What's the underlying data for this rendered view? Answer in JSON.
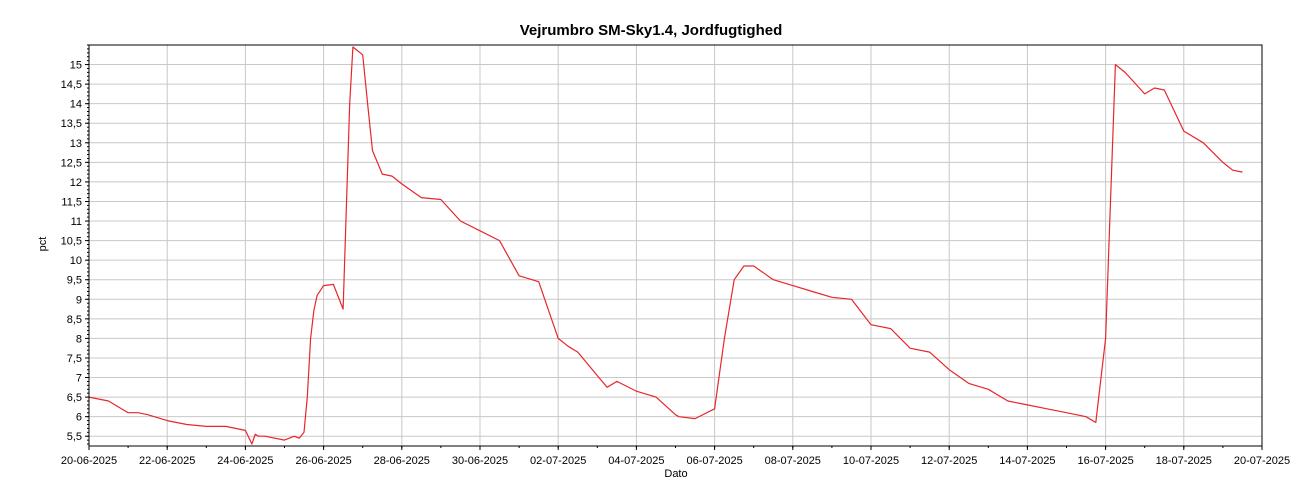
{
  "chart_data": {
    "type": "line",
    "title": "Vejrumbro SM-Sky1.4, Jordfugtighed",
    "xlabel": "Dato",
    "ylabel": "pct",
    "x_axis_type": "date",
    "x_tick_labels": [
      "20-06-2025",
      "22-06-2025",
      "24-06-2025",
      "26-06-2025",
      "28-06-2025",
      "30-06-2025",
      "02-07-2025",
      "04-07-2025",
      "06-07-2025",
      "08-07-2025",
      "10-07-2025",
      "12-07-2025",
      "14-07-2025",
      "16-07-2025",
      "18-07-2025",
      "20-07-2025"
    ],
    "x_range": [
      "2025-06-20",
      "2025-07-20"
    ],
    "y_tick_labels": [
      "5,5",
      "6",
      "6,5",
      "7",
      "7,5",
      "8",
      "8,5",
      "9",
      "9,5",
      "10",
      "10,5",
      "11",
      "11,5",
      "12",
      "12,5",
      "13",
      "13,5",
      "14",
      "14,5",
      "15"
    ],
    "ylim": [
      5.25,
      15.5
    ],
    "grid": true,
    "line_color": "#e8262b",
    "grid_color": "#c8c8c8",
    "series": [
      {
        "x": [
          "2025-06-20",
          "2025-06-20T12:00",
          "2025-06-21",
          "2025-06-21T06:00",
          "2025-06-21T12:00",
          "2025-06-22",
          "2025-06-22T12:00",
          "2025-06-23",
          "2025-06-23T12:00",
          "2025-06-24",
          "2025-06-24T04:00",
          "2025-06-24T06:00",
          "2025-06-24T08:00",
          "2025-06-24T12:00",
          "2025-06-25",
          "2025-06-25T06:00",
          "2025-06-25T09:00",
          "2025-06-25T12:00",
          "2025-06-25T14:00",
          "2025-06-25T16:00",
          "2025-06-25T18:00",
          "2025-06-25T20:00",
          "2025-06-26",
          "2025-06-26T06:00",
          "2025-06-26T12:00",
          "2025-06-26T16:00",
          "2025-06-26T18:00",
          "2025-06-27",
          "2025-06-27T03:00",
          "2025-06-27T06:00",
          "2025-06-27T12:00",
          "2025-06-27T18:00",
          "2025-06-28",
          "2025-06-28T12:00",
          "2025-06-29",
          "2025-06-29T12:00",
          "2025-06-30",
          "2025-06-30T12:00",
          "2025-07-01",
          "2025-07-01T12:00",
          "2025-07-02",
          "2025-07-02T06:00",
          "2025-07-02T12:00",
          "2025-07-03",
          "2025-07-03T06:00",
          "2025-07-03T12:00",
          "2025-07-04",
          "2025-07-04T12:00",
          "2025-07-05",
          "2025-07-05T02:00",
          "2025-07-05T12:00",
          "2025-07-06",
          "2025-07-06T06:00",
          "2025-07-06T12:00",
          "2025-07-06T18:00",
          "2025-07-07",
          "2025-07-07T12:00",
          "2025-07-08",
          "2025-07-08T12:00",
          "2025-07-09",
          "2025-07-09T12:00",
          "2025-07-10",
          "2025-07-10T12:00",
          "2025-07-11",
          "2025-07-11T12:00",
          "2025-07-12",
          "2025-07-12T12:00",
          "2025-07-13",
          "2025-07-13T12:00",
          "2025-07-14",
          "2025-07-14T12:00",
          "2025-07-15",
          "2025-07-15T06:00",
          "2025-07-15T12:00",
          "2025-07-15T18:00",
          "2025-07-16",
          "2025-07-16T06:00",
          "2025-07-16T12:00",
          "2025-07-17",
          "2025-07-17T06:00",
          "2025-07-17T12:00",
          "2025-07-18",
          "2025-07-18T12:00",
          "2025-07-19",
          "2025-07-19T06:00",
          "2025-07-19T12:00"
        ],
        "y": [
          6.5,
          6.4,
          6.1,
          6.1,
          6.05,
          5.9,
          5.8,
          5.75,
          5.75,
          5.65,
          5.3,
          5.55,
          5.5,
          5.5,
          5.4,
          5.5,
          5.45,
          5.6,
          6.5,
          8.0,
          8.7,
          9.1,
          9.35,
          9.38,
          8.75,
          14.0,
          15.45,
          15.25,
          14.0,
          12.8,
          12.2,
          12.15,
          11.95,
          11.6,
          11.55,
          11.0,
          10.75,
          10.5,
          9.6,
          9.45,
          8.0,
          7.8,
          7.65,
          7.05,
          6.75,
          6.9,
          6.65,
          6.5,
          6.05,
          6.0,
          5.95,
          6.2,
          8.0,
          9.5,
          9.85,
          9.85,
          9.5,
          9.35,
          9.2,
          9.05,
          9.0,
          8.35,
          8.25,
          7.75,
          7.65,
          7.2,
          6.85,
          6.7,
          6.4,
          6.3,
          6.2,
          6.1,
          6.05,
          6.0,
          5.85,
          8.0,
          15.0,
          14.8,
          14.25,
          14.4,
          14.35,
          13.3,
          13.0,
          12.5,
          12.3,
          12.25
        ],
        "color": "#e8262b"
      }
    ]
  }
}
